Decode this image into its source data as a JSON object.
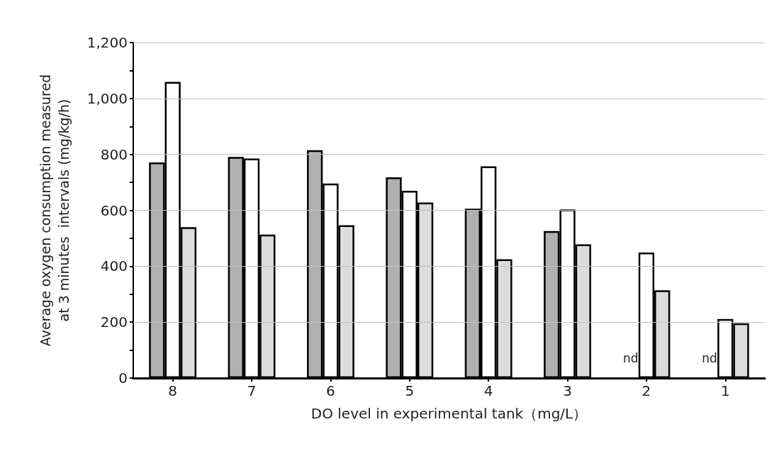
{
  "chart_data": {
    "type": "bar",
    "xlabel": "DO level in experimental tank（mg/L）",
    "ylabel": "Average oxygen consumption measured\nat 3 minutes  intervals (mg/kg/h)",
    "categories": [
      "8",
      "7",
      "6",
      "5",
      "4",
      "3",
      "2",
      "1"
    ],
    "series": [
      {
        "color": "#b0b0b0",
        "values": [
          771,
          791,
          815,
          718,
          606,
          526,
          null,
          null
        ]
      },
      {
        "color": "#ffffff",
        "values": [
          1059,
          785,
          696,
          670,
          757,
          603,
          449,
          211
        ]
      },
      {
        "color": "#dcdcdc",
        "values": [
          540,
          513,
          547,
          628,
          425,
          478,
          314,
          196
        ]
      }
    ],
    "ylim": [
      0,
      1200
    ],
    "yticks": [
      0,
      {
        "value": 100,
        "label": null
      },
      200,
      {
        "value": 300,
        "label": null
      },
      400,
      {
        "value": 500,
        "label": null
      },
      600,
      {
        "value": 700,
        "label": null
      },
      800,
      {
        "value": 900,
        "label": null
      },
      {
        "value": 1000,
        "label": "1,000"
      },
      {
        "value": 1100,
        "label": null
      },
      {
        "value": 1200,
        "label": "1,200"
      }
    ],
    "grid": "y",
    "annotations": [
      {
        "text": "nd",
        "x": "2",
        "y": 0
      },
      {
        "text": "nd",
        "x": "1",
        "y": 0
      }
    ]
  }
}
